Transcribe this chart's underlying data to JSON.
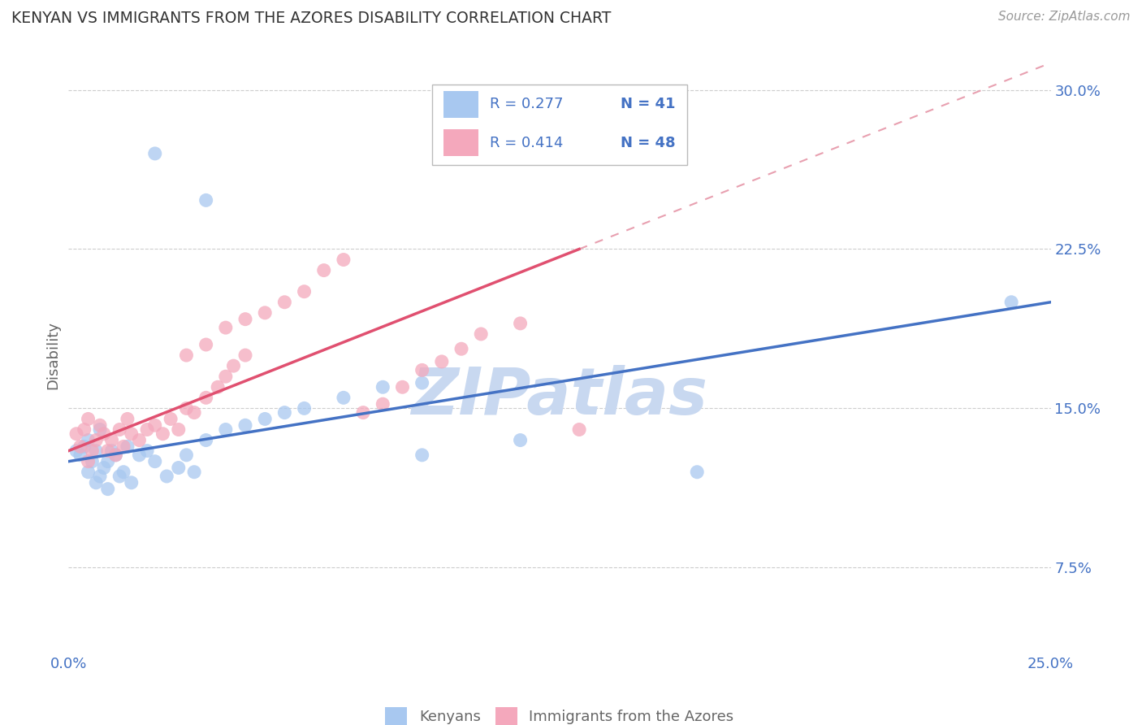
{
  "title": "KENYAN VS IMMIGRANTS FROM THE AZORES DISABILITY CORRELATION CHART",
  "source": "Source: ZipAtlas.com",
  "ylabel": "Disability",
  "xlim": [
    0.0,
    0.25
  ],
  "ylim": [
    0.035,
    0.315
  ],
  "yticks": [
    0.075,
    0.15,
    0.225,
    0.3
  ],
  "yticklabels": [
    "7.5%",
    "15.0%",
    "22.5%",
    "30.0%"
  ],
  "xtick_positions": [
    0.0,
    0.05,
    0.1,
    0.15,
    0.2,
    0.25
  ],
  "xticklabels": [
    "0.0%",
    "",
    "",
    "",
    "",
    "25.0%"
  ],
  "legend_r_blue": "R = 0.277",
  "legend_n_blue": "N = 41",
  "legend_r_pink": "R = 0.414",
  "legend_n_pink": "N = 48",
  "blue_color": "#A8C8F0",
  "pink_color": "#F4A8BC",
  "blue_line_color": "#4472C4",
  "pink_line_color": "#E05070",
  "pink_dash_color": "#E8A0B0",
  "watermark": "ZIPatlas",
  "watermark_color": "#C8D8F0",
  "grid_color": "#C8C8C8",
  "background_color": "#FFFFFF",
  "title_color": "#333333",
  "axis_label_color": "#666666",
  "tick_label_color": "#4472C4",
  "legend_border_color": "#BBBBBB"
}
